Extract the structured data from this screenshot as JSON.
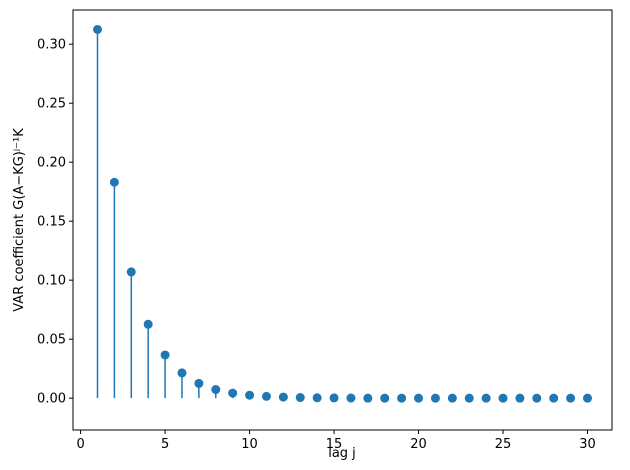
{
  "chart_data": {
    "type": "stem",
    "xlabel": "lag j",
    "ylabel": "VAR coefficient G(A−KG)ʲ⁻¹K",
    "color": "#1f77b4",
    "x": [
      1,
      2,
      3,
      4,
      5,
      6,
      7,
      8,
      9,
      10,
      11,
      12,
      13,
      14,
      15,
      16,
      17,
      18,
      19,
      20,
      21,
      22,
      23,
      24,
      25,
      26,
      27,
      28,
      29,
      30
    ],
    "values": [
      0.3125,
      0.183,
      0.107,
      0.0626,
      0.0366,
      0.0214,
      0.0125,
      0.0073,
      0.0043,
      0.0025,
      0.0015,
      0.0009,
      0.0005,
      0.0003,
      0.0002,
      0.0001,
      0,
      0,
      0,
      0,
      0,
      0,
      0,
      0,
      0,
      0,
      0,
      0,
      0,
      0
    ],
    "xlim": [
      -0.45,
      31.45
    ],
    "ylim": [
      -0.027,
      0.329
    ],
    "xticks": [
      0,
      5,
      10,
      15,
      20,
      25,
      30
    ],
    "yticks": [
      {
        "value": 0,
        "label": "0.00"
      },
      {
        "value": 0.05,
        "label": "0.05"
      },
      {
        "value": 0.1,
        "label": "0.10"
      },
      {
        "value": 0.15,
        "label": "0.15"
      },
      {
        "value": 0.2,
        "label": "0.20"
      },
      {
        "value": 0.25,
        "label": "0.25"
      },
      {
        "value": 0.3,
        "label": "0.30"
      }
    ]
  }
}
